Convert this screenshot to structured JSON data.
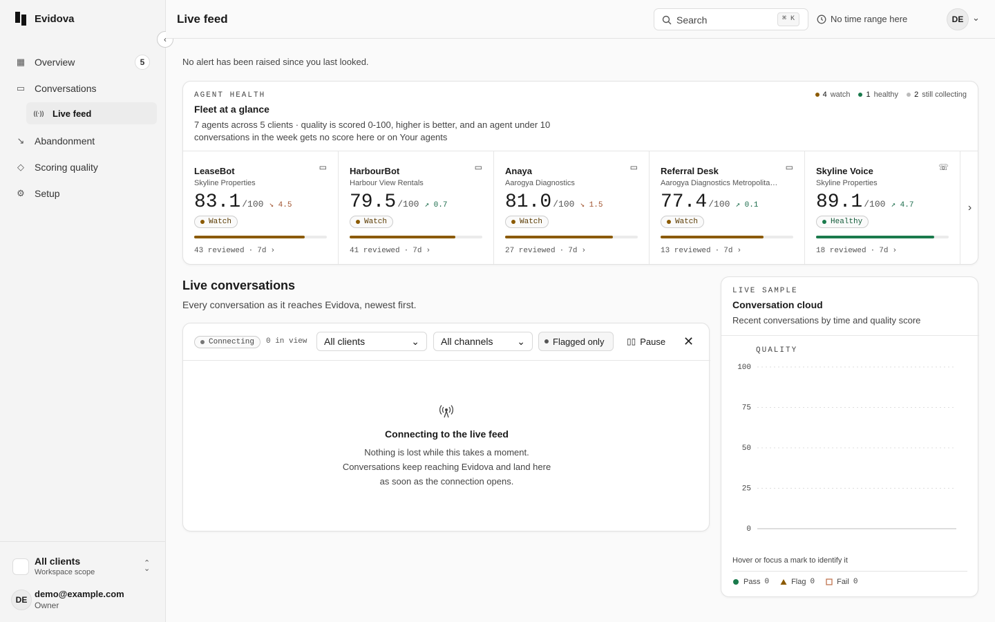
{
  "sidebar": {
    "brand": "Evidova",
    "nav": [
      {
        "label": "Overview",
        "badge": "5"
      },
      {
        "label": "Conversations"
      },
      {
        "label": "Live feed",
        "sub": true,
        "active": true
      },
      {
        "label": "Abandonment"
      },
      {
        "label": "Scoring quality"
      },
      {
        "label": "Setup"
      }
    ],
    "scope": {
      "title": "All clients",
      "subtitle": "Workspace scope"
    },
    "user": {
      "avatar": "DE",
      "email": "demo@example.com",
      "role": "Owner"
    }
  },
  "header": {
    "title": "Live feed",
    "search": "Search",
    "shortcut": "⌘ K",
    "time_range": "No time range here",
    "avatar": "DE"
  },
  "notice": "No alert has been raised since you last looked.",
  "health": {
    "eyebrow": "AGENT HEALTH",
    "title": "Fleet at a glance",
    "description": "7 agents across 5 clients · quality is scored 0-100, higher is better, and an agent under 10 conversations in the week gets no score here or on Your agents",
    "legend": [
      {
        "count": "4",
        "label": "watch",
        "color": "#8b5a00"
      },
      {
        "count": "1",
        "label": "healthy",
        "color": "#1a7a4c"
      },
      {
        "count": "2",
        "label": "still collecting",
        "color": "#bbbbbb"
      }
    ],
    "out_of": "/100",
    "agents": [
      {
        "name": "LeaseBot",
        "client": "Skyline Properties",
        "score": "83.1",
        "delta": "↘ 4.5",
        "delta_color": "#a0522d",
        "status": "Watch",
        "color": "#8b5a00",
        "reviewed": "43 reviewed",
        "period": "7d",
        "channel": "chat"
      },
      {
        "name": "HarbourBot",
        "client": "Harbour View Rentals",
        "score": "79.5",
        "delta": "↗ 0.7",
        "delta_color": "#1a6b4a",
        "status": "Watch",
        "color": "#8b5a00",
        "reviewed": "41 reviewed",
        "period": "7d",
        "channel": "chat"
      },
      {
        "name": "Anaya",
        "client": "Aarogya Diagnostics",
        "score": "81.0",
        "delta": "↘ 1.5",
        "delta_color": "#a0522d",
        "status": "Watch",
        "color": "#8b5a00",
        "reviewed": "27 reviewed",
        "period": "7d",
        "channel": "chat"
      },
      {
        "name": "Referral Desk",
        "client": "Aarogya Diagnostics Metropolita…",
        "score": "77.4",
        "delta": "↗ 0.1",
        "delta_color": "#1a6b4a",
        "status": "Watch",
        "color": "#8b5a00",
        "reviewed": "13 reviewed",
        "period": "7d",
        "channel": "chat"
      },
      {
        "name": "Skyline Voice",
        "client": "Skyline Properties",
        "score": "89.1",
        "delta": "↗ 4.7",
        "delta_color": "#1a6b4a",
        "status": "Healthy",
        "color": "#1a7a4c",
        "reviewed": "18 reviewed",
        "period": "7d",
        "channel": "voice"
      }
    ]
  },
  "live": {
    "title": "Live conversations",
    "subtitle": "Every conversation as it reaches Evidova, newest first.",
    "status": "Connecting",
    "in_view": "0 in view",
    "clients": "All clients",
    "channels": "All channels",
    "flagged": "Flagged only",
    "pause": "Pause",
    "empty_title": "Connecting to the live feed",
    "empty_lines": [
      "Nothing is lost while this takes a moment.",
      "Conversations keep reaching Evidova and land here",
      "as soon as the connection opens."
    ]
  },
  "cloud": {
    "eyebrow": "LIVE SAMPLE",
    "title": "Conversation cloud",
    "subtitle": "Recent conversations by time and quality score",
    "y_label": "QUALITY",
    "ylim": [
      0,
      100
    ],
    "yticks": [
      0,
      25,
      50,
      75,
      100
    ],
    "hint": "Hover or focus a mark to identify it",
    "legend": [
      {
        "label": "Pass",
        "count": "0",
        "color": "#1a7a4c",
        "shape": "circle"
      },
      {
        "label": "Flag",
        "count": "0",
        "color": "#8b5a00",
        "shape": "triangle"
      },
      {
        "label": "Fail",
        "count": "0",
        "color": "#c0734f",
        "shape": "square"
      }
    ]
  }
}
